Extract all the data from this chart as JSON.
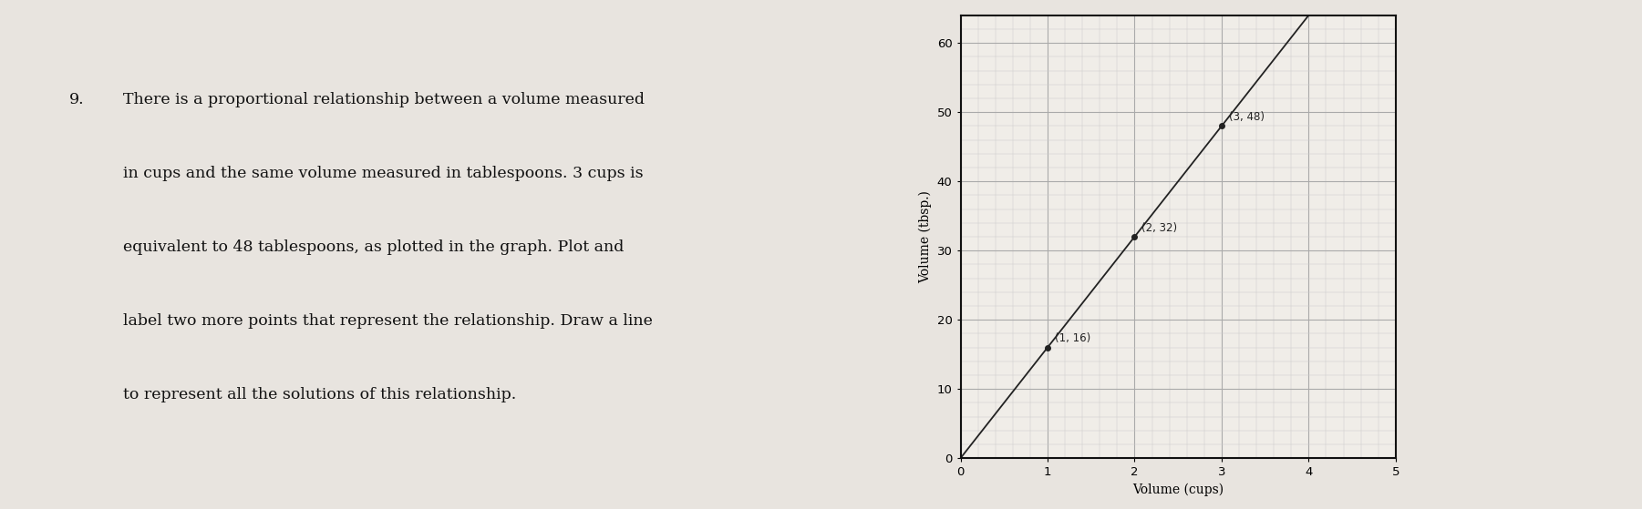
{
  "xlabel": "Volume (cups)",
  "ylabel": "Volume (tbsp.)",
  "xlim": [
    0,
    5
  ],
  "ylim": [
    0,
    64
  ],
  "xticks": [
    0,
    1,
    2,
    3,
    4,
    5
  ],
  "yticks": [
    0,
    10,
    20,
    30,
    40,
    50,
    60
  ],
  "given_point": [
    3,
    48
  ],
  "given_label": "(3, 48)",
  "extra_points": [
    [
      1,
      16
    ],
    [
      2,
      32
    ]
  ],
  "extra_labels": [
    "(1, 16)",
    "(2, 32)"
  ],
  "ratio": 16,
  "point_color": "#222222",
  "line_color": "#222222",
  "grid_major_color": "#aaaaaa",
  "grid_minor_color": "#cccccc",
  "bg_color": "#f0ede8",
  "paper_color": "#e8e4df",
  "text_color": "#111111",
  "text_fontsize": 12.5,
  "label_fontsize": 10,
  "tick_fontsize": 9.5,
  "point_fontsize": 8.5,
  "fig_width": 18.01,
  "fig_height": 5.59,
  "problem_number": "9.",
  "problem_text_line1": "There is a proportional relationship between a volume measured",
  "problem_text_line2": "in cups and the same volume measured in tablespoons. 3 cups is",
  "problem_text_line3": "equivalent to 48 tablespoons, as plotted in the graph. Plot and",
  "problem_text_line4": "label two more points that represent the relationship. Draw a line",
  "problem_text_line5": "to represent all the solutions of this relationship."
}
